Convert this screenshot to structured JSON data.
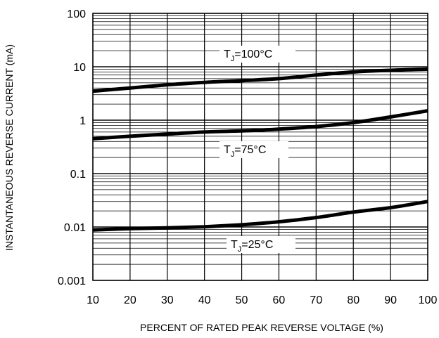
{
  "chart_data": {
    "type": "line",
    "title": "",
    "xlabel": "PERCENT OF RATED PEAK REVERSE VOLTAGE (%)",
    "ylabel": "INSTANTANEOUS REVERSE CURRENT (mA)",
    "xlim": [
      10,
      100
    ],
    "ylim": [
      0.001,
      100
    ],
    "yscale": "log",
    "grid": true,
    "x_ticks": [
      "10",
      "20",
      "30",
      "40",
      "50",
      "60",
      "70",
      "80",
      "90",
      "100"
    ],
    "y_ticks": [
      "100",
      "10",
      "1",
      "0.1",
      "0.01",
      "0.001"
    ],
    "x": [
      10,
      20,
      30,
      40,
      50,
      60,
      70,
      80,
      90,
      100
    ],
    "series": [
      {
        "name": "TJ=100°C",
        "label_sub": "J",
        "label_rest": "=100°C",
        "values": [
          3.5,
          4.0,
          4.6,
          5.1,
          5.5,
          6.0,
          7.0,
          8.0,
          8.6,
          9.0
        ]
      },
      {
        "name": "TJ=75°C",
        "label_sub": "J",
        "label_rest": "=75°C",
        "values": [
          0.45,
          0.5,
          0.55,
          0.6,
          0.63,
          0.68,
          0.76,
          0.9,
          1.15,
          1.5
        ]
      },
      {
        "name": "TJ=25°C",
        "label_sub": "J",
        "label_rest": "=25°C",
        "values": [
          0.0088,
          0.0093,
          0.0096,
          0.0101,
          0.011,
          0.0125,
          0.015,
          0.019,
          0.023,
          0.03
        ]
      }
    ]
  }
}
